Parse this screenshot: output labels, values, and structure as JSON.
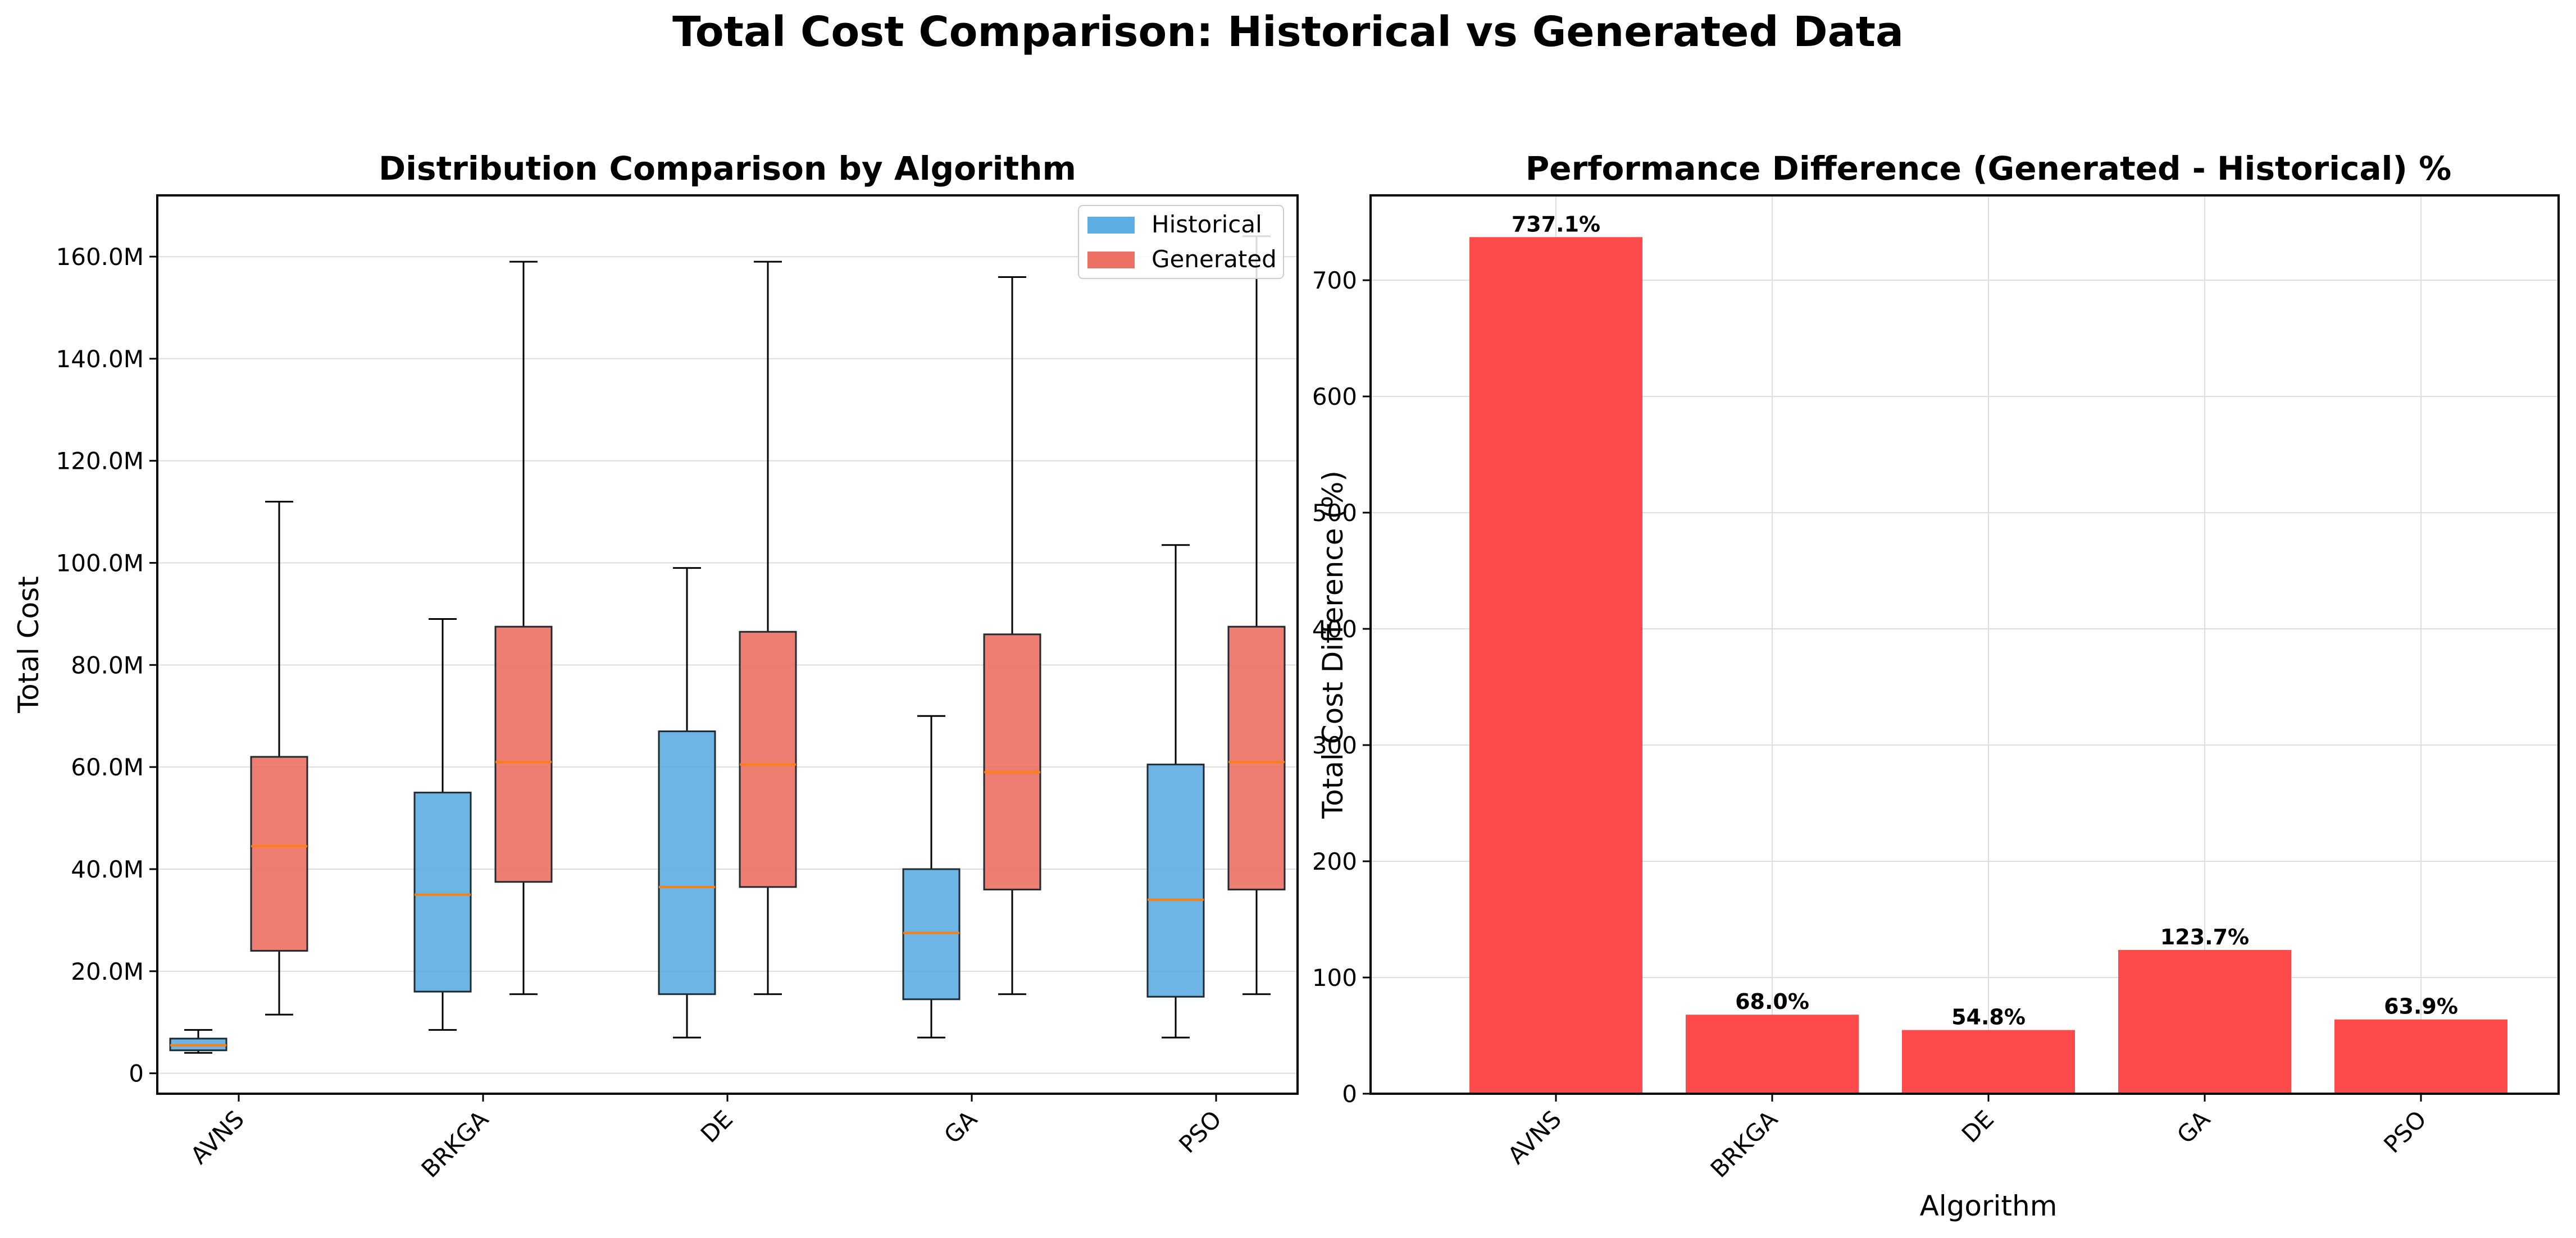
{
  "figure": {
    "title": "Total Cost Comparison: Historical vs Generated Data"
  },
  "chart_data": [
    {
      "type": "box",
      "title": "Distribution Comparison by Algorithm",
      "xlabel": "",
      "ylabel": "Total Cost",
      "categories": [
        "AVNS",
        "BRKGA",
        "DE",
        "GA",
        "PSO"
      ],
      "ylim": [
        -4000000,
        172000000
      ],
      "yticks": [
        0,
        20000000,
        40000000,
        60000000,
        80000000,
        100000000,
        120000000,
        140000000,
        160000000
      ],
      "ytick_labels": [
        "0",
        "20.0M",
        "40.0M",
        "60.0M",
        "80.0M",
        "100.0M",
        "120.0M",
        "140.0M",
        "160.0M"
      ],
      "grid": "y",
      "legend": "top-right",
      "median_color": "#ff7f0e",
      "series": [
        {
          "name": "Historical",
          "color": "#5dade2",
          "boxes": [
            {
              "whislo": 4000000,
              "q1": 4500000,
              "med": 5500000,
              "q3": 6800000,
              "whishi": 8500000
            },
            {
              "whislo": 8500000,
              "q1": 16000000,
              "med": 35000000,
              "q3": 55000000,
              "whishi": 89000000
            },
            {
              "whislo": 7000000,
              "q1": 15500000,
              "med": 36500000,
              "q3": 67000000,
              "whishi": 99000000
            },
            {
              "whislo": 7000000,
              "q1": 14500000,
              "med": 27500000,
              "q3": 40000000,
              "whishi": 70000000
            },
            {
              "whislo": 7000000,
              "q1": 15000000,
              "med": 34000000,
              "q3": 60500000,
              "whishi": 103500000
            }
          ]
        },
        {
          "name": "Generated",
          "color": "#ec7063",
          "boxes": [
            {
              "whislo": 11500000,
              "q1": 24000000,
              "med": 44500000,
              "q3": 62000000,
              "whishi": 112000000
            },
            {
              "whislo": 15500000,
              "q1": 37500000,
              "med": 61000000,
              "q3": 87500000,
              "whishi": 159000000
            },
            {
              "whislo": 15500000,
              "q1": 36500000,
              "med": 60500000,
              "q3": 86500000,
              "whishi": 159000000
            },
            {
              "whislo": 15500000,
              "q1": 36000000,
              "med": 59000000,
              "q3": 86000000,
              "whishi": 156000000
            },
            {
              "whislo": 15500000,
              "q1": 36000000,
              "med": 61000000,
              "q3": 87500000,
              "whishi": 164000000
            }
          ]
        }
      ]
    },
    {
      "type": "bar",
      "title": "Performance Difference (Generated - Historical) %",
      "xlabel": "Algorithm",
      "ylabel": "Total Cost Difference (%)",
      "categories": [
        "AVNS",
        "BRKGA",
        "DE",
        "GA",
        "PSO"
      ],
      "values": [
        737.1,
        68.0,
        54.8,
        123.7,
        63.9
      ],
      "value_labels": [
        "737.1%",
        "68.0%",
        "54.8%",
        "123.7%",
        "63.9%"
      ],
      "ylim": [
        0,
        773
      ],
      "yticks": [
        0,
        100,
        200,
        300,
        400,
        500,
        600,
        700
      ],
      "ytick_labels": [
        "0",
        "100",
        "200",
        "300",
        "400",
        "500",
        "600",
        "700"
      ],
      "grid": "both",
      "color": "#ff4a4c"
    }
  ]
}
